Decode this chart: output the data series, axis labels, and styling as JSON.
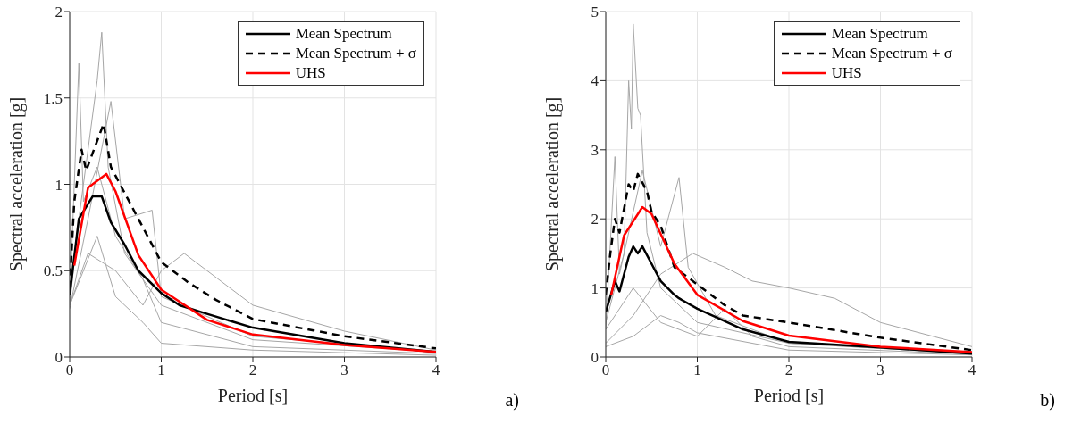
{
  "chart_data": [
    {
      "type": "line",
      "xlabel": "Period [s]",
      "ylabel": "Spectral acceleration [g]",
      "xlim": [
        0,
        4
      ],
      "xticks": [
        0,
        1,
        2,
        3,
        4
      ],
      "ylim": [
        0,
        2
      ],
      "yticks": [
        0,
        0.5,
        1,
        1.5,
        2
      ],
      "grid": true,
      "legend": "top right",
      "marker": "none",
      "annotations": [
        "a)"
      ],
      "series": [
        {
          "color": "#a6a6a6",
          "x": [
            0,
            0.1,
            0.2,
            0.3,
            0.35,
            0.42,
            0.6,
            1,
            2,
            4
          ],
          "values": [
            0.3,
            0.8,
            1.2,
            1.6,
            1.88,
            1.1,
            0.6,
            0.3,
            0.1,
            0.03
          ]
        },
        {
          "color": "#a6a6a6",
          "x": [
            0,
            0.1,
            0.15,
            0.3,
            0.5,
            0.8,
            1,
            2,
            4
          ],
          "values": [
            0.3,
            1.7,
            0.9,
            1.1,
            0.7,
            0.45,
            0.2,
            0.06,
            0.02
          ]
        },
        {
          "color": "#a6a6a6",
          "x": [
            0,
            0.2,
            0.5,
            0.8,
            1,
            1.25,
            1.5,
            2,
            3,
            4
          ],
          "values": [
            0.3,
            0.6,
            0.5,
            0.3,
            0.5,
            0.6,
            0.5,
            0.3,
            0.15,
            0.04
          ]
        },
        {
          "color": "#a6a6a6",
          "x": [
            0,
            0.2,
            0.45,
            0.6,
            0.9,
            1,
            2,
            4
          ],
          "values": [
            0.28,
            0.8,
            1.48,
            0.8,
            0.85,
            0.35,
            0.12,
            0.03
          ]
        },
        {
          "color": "#a6a6a6",
          "x": [
            0,
            0.3,
            0.5,
            0.8,
            1,
            2,
            4
          ],
          "values": [
            0.3,
            0.7,
            0.35,
            0.2,
            0.08,
            0.04,
            0.01
          ]
        },
        {
          "name": "Mean Spectrum",
          "color": "#000000",
          "x": [
            0,
            0.1,
            0.25,
            0.35,
            0.45,
            0.6,
            0.75,
            1,
            1.2,
            1.5,
            2,
            3,
            4
          ],
          "values": [
            0.36,
            0.8,
            0.93,
            0.93,
            0.78,
            0.65,
            0.5,
            0.37,
            0.3,
            0.25,
            0.17,
            0.08,
            0.03
          ]
        },
        {
          "name": "Mean Spectrum + σ",
          "color": "#000000",
          "line_style": "dashed",
          "x": [
            0,
            0.05,
            0.13,
            0.18,
            0.25,
            0.37,
            0.45,
            0.6,
            0.8,
            1,
            1.3,
            1.6,
            2,
            3,
            4
          ],
          "values": [
            0.4,
            0.9,
            1.2,
            1.08,
            1.18,
            1.35,
            1.1,
            0.95,
            0.75,
            0.55,
            0.43,
            0.33,
            0.22,
            0.12,
            0.05
          ]
        },
        {
          "name": "UHS",
          "color": "#ff0000",
          "x": [
            0.05,
            0.2,
            0.4,
            0.5,
            0.75,
            1,
            1.5,
            2,
            3,
            4
          ],
          "values": [
            0.53,
            0.98,
            1.06,
            0.96,
            0.59,
            0.39,
            0.215,
            0.13,
            0.07,
            0.03
          ]
        }
      ]
    },
    {
      "type": "line",
      "xlabel": "Period [s]",
      "ylabel": "Spectral acceleration [g]",
      "xlim": [
        0,
        4
      ],
      "xticks": [
        0,
        1,
        2,
        3,
        4
      ],
      "ylim": [
        0,
        5
      ],
      "yticks": [
        0,
        1,
        2,
        3,
        4,
        5
      ],
      "grid": true,
      "legend": "top right",
      "marker": "none",
      "annotations": [
        "b)"
      ],
      "series": [
        {
          "color": "#a6a6a6",
          "x": [
            0,
            0.2,
            0.25,
            0.28,
            0.3,
            0.35,
            0.38,
            0.45,
            0.6,
            1,
            2,
            4
          ],
          "values": [
            0.5,
            1.5,
            4.0,
            3.3,
            4.82,
            3.6,
            3.5,
            1.8,
            1.0,
            0.5,
            0.2,
            0.05
          ]
        },
        {
          "color": "#a6a6a6",
          "x": [
            0,
            0.3,
            0.6,
            0.95,
            1.3,
            1.6,
            2,
            2.5,
            3,
            4
          ],
          "values": [
            0.2,
            0.6,
            1.2,
            1.5,
            1.3,
            1.1,
            1.0,
            0.85,
            0.5,
            0.15
          ]
        },
        {
          "color": "#a6a6a6",
          "x": [
            0,
            0.1,
            0.15,
            0.4,
            0.6,
            0.8,
            0.9,
            1.2,
            2,
            4
          ],
          "values": [
            0.4,
            2.9,
            1.2,
            2.7,
            1.6,
            2.6,
            1.3,
            0.6,
            0.2,
            0.05
          ]
        },
        {
          "color": "#a6a6a6",
          "x": [
            0,
            0.3,
            0.6,
            0.8,
            1,
            2,
            4
          ],
          "values": [
            0.15,
            0.3,
            0.6,
            0.5,
            0.35,
            0.1,
            0.03
          ]
        },
        {
          "color": "#a6a6a6",
          "x": [
            0,
            0.3,
            0.6,
            1,
            1.3,
            1.6,
            2,
            4
          ],
          "values": [
            0.4,
            1.0,
            0.5,
            0.3,
            0.7,
            0.3,
            0.15,
            0.04
          ]
        },
        {
          "name": "Mean Spectrum",
          "color": "#000000",
          "x": [
            0,
            0.1,
            0.15,
            0.25,
            0.3,
            0.35,
            0.4,
            0.5,
            0.6,
            0.75,
            0.8,
            1,
            1.2,
            1.5,
            2,
            3,
            4
          ],
          "values": [
            0.65,
            1.1,
            0.95,
            1.45,
            1.6,
            1.5,
            1.6,
            1.35,
            1.1,
            0.9,
            0.85,
            0.7,
            0.58,
            0.4,
            0.22,
            0.14,
            0.05
          ]
        },
        {
          "name": "Mean Spectrum + σ",
          "color": "#000000",
          "line_style": "dashed",
          "x": [
            0,
            0.05,
            0.1,
            0.15,
            0.25,
            0.3,
            0.35,
            0.45,
            0.5,
            0.6,
            0.75,
            1,
            1.3,
            1.5,
            2,
            3,
            4
          ],
          "values": [
            0.9,
            1.5,
            2.0,
            1.8,
            2.5,
            2.4,
            2.65,
            2.4,
            2.1,
            1.9,
            1.3,
            1.05,
            0.75,
            0.6,
            0.5,
            0.28,
            0.1
          ]
        },
        {
          "name": "UHS",
          "color": "#ff0000",
          "x": [
            0.06,
            0.2,
            0.4,
            0.5,
            0.75,
            1,
            1.5,
            2,
            3,
            4
          ],
          "values": [
            0.9,
            1.76,
            2.17,
            2.07,
            1.35,
            0.9,
            0.52,
            0.31,
            0.15,
            0.07
          ]
        }
      ]
    }
  ]
}
